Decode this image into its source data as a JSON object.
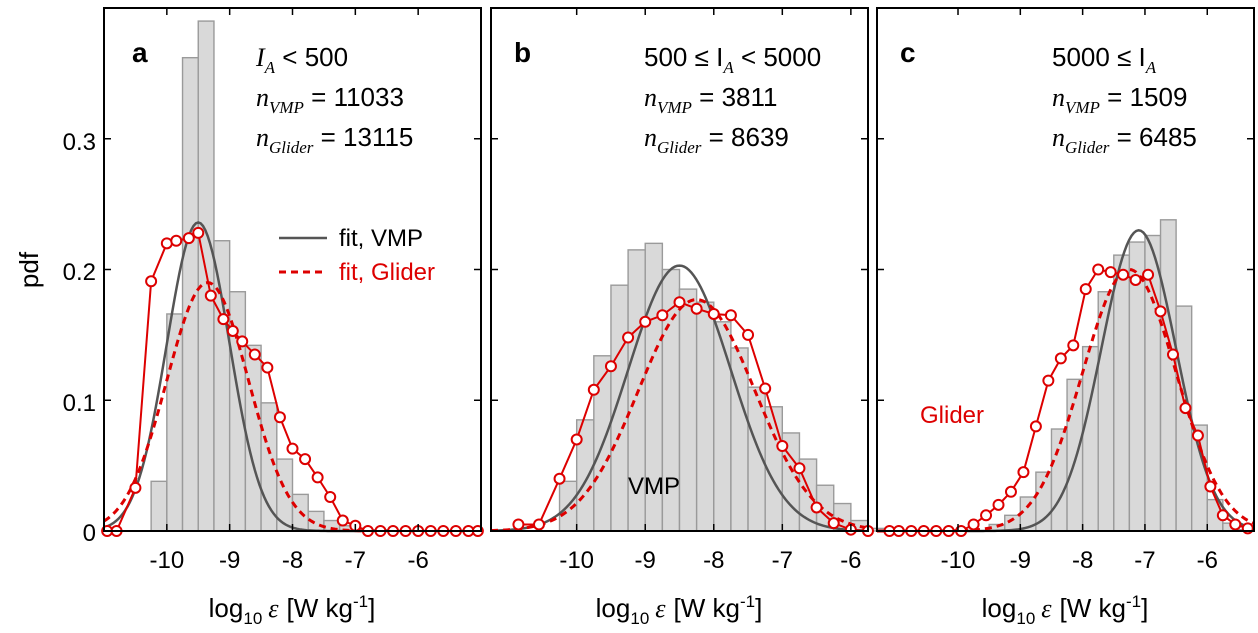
{
  "figure": {
    "ylabel": "pdf",
    "xlabel_main": "log",
    "xlabel_sub": "10",
    "xlabel_var": "ε",
    "xlabel_unit": "[W kg",
    "xlabel_unit_sup": "-1",
    "xlabel_unit_end": "]",
    "y_ticks": [
      "0",
      "0.1",
      "0.2",
      "0.3"
    ],
    "legend": {
      "vmp": "fit, VMP",
      "glider": "fit, Glider"
    },
    "colors": {
      "vmp_fit": "#555555",
      "glider": "#dd0000",
      "hist_fill": "#d9d9d9",
      "hist_edge": "#9a9a9a"
    }
  },
  "panels": [
    {
      "letter": "a",
      "ann": [
        {
          "v": "I",
          "s": "A",
          "r": " < 500"
        },
        {
          "v": "n",
          "s": "VMP",
          "r": " = 11033"
        },
        {
          "v": "n",
          "s": "Glider",
          "r": " = 13115"
        }
      ],
      "x_ticks": [
        "-10",
        "-9",
        "-8",
        "-7",
        "-6"
      ],
      "note": ""
    },
    {
      "letter": "b",
      "ann": [
        {
          "v": "500 ≤ I",
          "s": "A",
          "r": " < 5000"
        },
        {
          "v": "n",
          "s": "VMP",
          "r": " = 3811"
        },
        {
          "v": "n",
          "s": "Glider",
          "r": " = 8639"
        }
      ],
      "x_ticks": [
        "-10",
        "-9",
        "-8",
        "-7",
        "-6"
      ],
      "note": "VMP"
    },
    {
      "letter": "c",
      "ann": [
        {
          "v": "5000 ≤ I",
          "s": "A",
          "r": ""
        },
        {
          "v": "n",
          "s": "VMP",
          "r": " = 1509"
        },
        {
          "v": "n",
          "s": "Glider",
          "r": " = 6485"
        }
      ],
      "x_ticks": [
        "-10",
        "-9",
        "-8",
        "-7",
        "-6"
      ],
      "note": "Glider"
    }
  ],
  "chart_data": [
    {
      "type": "bar",
      "title": "a",
      "xlabel": "log10 ε [W kg-1]",
      "ylabel": "pdf",
      "xlim": [
        -11,
        -5
      ],
      "ylim": [
        0,
        0.4
      ],
      "bin_width": 0.25,
      "hist_start": -10.5,
      "hist": [
        0.0,
        0.038,
        0.166,
        0.362,
        0.39,
        0.222,
        0.183,
        0.142,
        0.098,
        0.055,
        0.028,
        0.015,
        0.008,
        0.004,
        0.002,
        0.001
      ],
      "glider_x": [
        -10.95,
        -10.8,
        -10.5,
        -10.25,
        -10.0,
        -9.85,
        -9.65,
        -9.5,
        -9.3,
        -9.1,
        -8.95,
        -8.8,
        -8.6,
        -8.4,
        -8.2,
        -8.0,
        -7.8,
        -7.6,
        -7.4,
        -7.2,
        -7.0,
        -6.8,
        -6.6,
        -6.4,
        -6.2,
        -6.0,
        -5.8,
        -5.6,
        -5.4,
        -5.2,
        -5.05
      ],
      "glider_y": [
        0.0,
        0.0,
        0.033,
        0.191,
        0.22,
        0.222,
        0.224,
        0.228,
        0.18,
        0.162,
        0.153,
        0.145,
        0.135,
        0.125,
        0.087,
        0.063,
        0.055,
        0.041,
        0.026,
        0.008,
        0.004,
        0.0,
        0.0,
        0.0,
        0.0,
        0.0,
        0.0,
        0.0,
        0.0,
        0.0,
        0.0
      ],
      "fit_vmp": {
        "mu": -9.5,
        "sigma": 0.5,
        "amp": 0.236
      },
      "fit_glider": {
        "mu": -9.35,
        "sigma": 0.65,
        "amp": 0.19
      },
      "series": [
        {
          "name": "fit, VMP"
        },
        {
          "name": "fit, Glider"
        }
      ]
    },
    {
      "type": "bar",
      "title": "b",
      "xlabel": "log10 ε [W kg-1]",
      "ylabel": "pdf",
      "xlim": [
        -11.25,
        -5.75
      ],
      "ylim": [
        0,
        0.4
      ],
      "bin_width": 0.25,
      "hist_start": -10.5,
      "hist": [
        0.0,
        0.038,
        0.085,
        0.134,
        0.188,
        0.215,
        0.22,
        0.2,
        0.185,
        0.175,
        0.16,
        0.14,
        0.11,
        0.095,
        0.075,
        0.055,
        0.035,
        0.021,
        0.008,
        0.002
      ],
      "glider_x": [
        -10.85,
        -10.55,
        -10.25,
        -10.0,
        -9.75,
        -9.5,
        -9.25,
        -9.0,
        -8.75,
        -8.5,
        -8.25,
        -8.0,
        -7.75,
        -7.5,
        -7.25,
        -7.0,
        -6.75,
        -6.5,
        -6.25,
        -6.0,
        -5.75
      ],
      "glider_y": [
        0.005,
        0.005,
        0.04,
        0.07,
        0.108,
        0.126,
        0.148,
        0.16,
        0.165,
        0.175,
        0.17,
        0.166,
        0.165,
        0.15,
        0.109,
        0.065,
        0.048,
        0.018,
        0.006,
        0.001,
        0.0
      ],
      "fit_vmp": {
        "mu": -8.5,
        "sigma": 0.75,
        "amp": 0.203
      },
      "fit_glider": {
        "mu": -8.25,
        "sigma": 0.85,
        "amp": 0.177
      },
      "series": [
        {
          "name": "VMP"
        }
      ]
    },
    {
      "type": "bar",
      "title": "c",
      "xlabel": "log10 ε [W kg-1]",
      "ylabel": "pdf",
      "xlim": [
        -11.3,
        -5.25
      ],
      "ylim": [
        0,
        0.4
      ],
      "bin_width": 0.25,
      "hist_start": -9.5,
      "hist": [
        0.005,
        0.012,
        0.026,
        0.045,
        0.078,
        0.116,
        0.141,
        0.183,
        0.211,
        0.221,
        0.226,
        0.238,
        0.172,
        0.081,
        0.024,
        0.006,
        0.001
      ],
      "glider_x": [
        -11.1,
        -10.95,
        -10.75,
        -10.55,
        -10.35,
        -10.15,
        -9.95,
        -9.75,
        -9.55,
        -9.35,
        -9.15,
        -8.95,
        -8.75,
        -8.55,
        -8.35,
        -8.15,
        -7.95,
        -7.75,
        -7.55,
        -7.35,
        -7.15,
        -6.95,
        -6.75,
        -6.55,
        -6.35,
        -6.15,
        -5.95,
        -5.75,
        -5.55,
        -5.35
      ],
      "glider_y": [
        0.0,
        0.0,
        0.0,
        0.0,
        0.0,
        0.0,
        0.0,
        0.005,
        0.012,
        0.02,
        0.03,
        0.045,
        0.08,
        0.115,
        0.132,
        0.142,
        0.185,
        0.2,
        0.198,
        0.196,
        0.192,
        0.196,
        0.168,
        0.135,
        0.094,
        0.073,
        0.034,
        0.012,
        0.005,
        0.002
      ],
      "fit_vmp": {
        "mu": -7.1,
        "sigma": 0.6,
        "amp": 0.23
      },
      "fit_glider": {
        "mu": -7.25,
        "sigma": 0.75,
        "amp": 0.2
      },
      "series": [
        {
          "name": "Glider"
        }
      ]
    }
  ]
}
